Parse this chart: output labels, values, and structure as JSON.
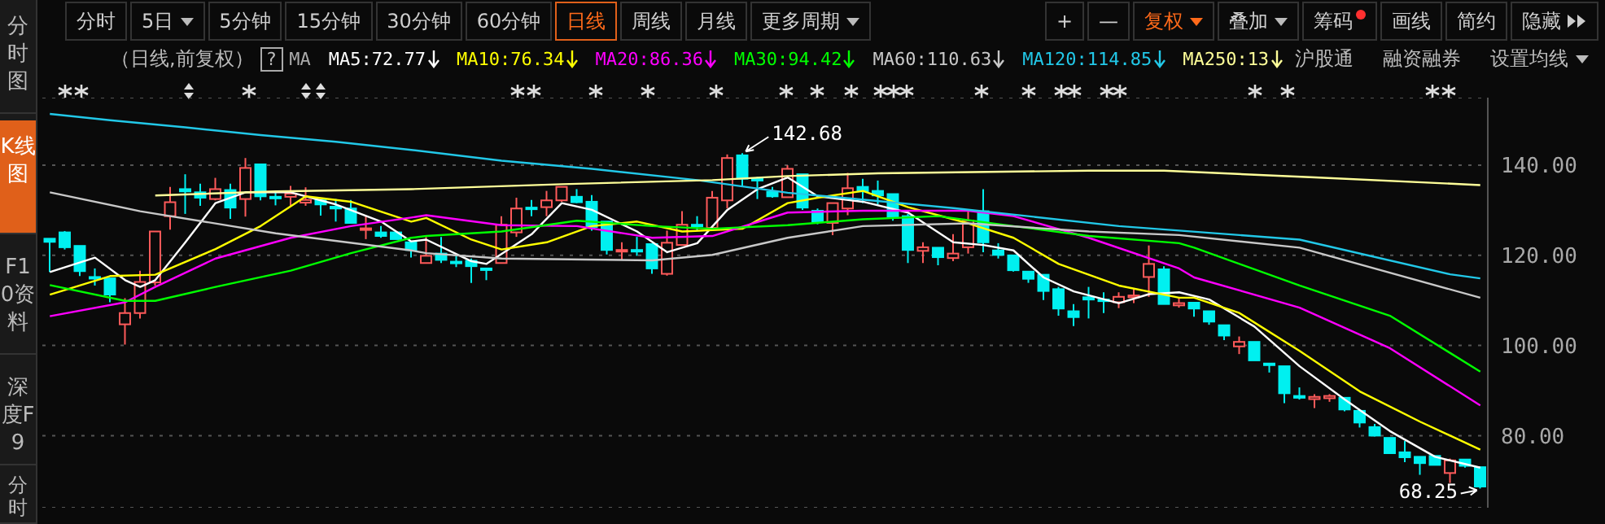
{
  "chart_data": {
    "type": "candlestick",
    "subtitle": "（日线,前复权）",
    "categories": [
      null,
      null,
      null,
      null,
      null,
      null,
      null,
      null,
      null,
      null,
      null,
      null,
      null,
      null,
      null,
      null,
      null,
      null,
      null,
      null,
      null,
      null,
      null,
      null,
      null,
      null,
      null,
      null,
      null,
      null,
      null,
      null,
      null,
      null,
      null,
      null,
      null,
      null,
      null,
      null,
      null,
      null,
      null,
      null,
      null,
      null,
      null,
      null,
      null,
      null,
      null,
      null,
      null,
      null,
      null,
      null,
      null,
      null,
      null,
      null,
      null,
      null,
      null,
      null,
      null,
      null,
      null,
      null,
      null,
      null,
      null,
      null,
      null,
      null,
      null,
      null,
      null,
      null,
      null,
      null,
      null,
      null,
      null,
      null,
      null,
      null,
      null,
      null,
      null,
      null,
      null,
      null,
      null,
      null,
      null,
      null
    ],
    "ohlc": [
      [
        123.7,
        123.7,
        116.3,
        123.0
      ],
      [
        125.1,
        125.4,
        121.3,
        121.8
      ],
      [
        122.1,
        122.1,
        115.4,
        116.5
      ],
      [
        115.2,
        117.1,
        113.3,
        114.9
      ],
      [
        114.9,
        114.9,
        109.6,
        111.3
      ],
      [
        104.7,
        110.5,
        100.2,
        107.2
      ],
      [
        107.2,
        116.6,
        106.0,
        114.1
      ],
      [
        114.0,
        125.3,
        113.3,
        125.3
      ],
      [
        128.7,
        135.2,
        125.7,
        131.8
      ],
      [
        134.7,
        138.0,
        129.2,
        134.2
      ],
      [
        134.0,
        135.9,
        131.0,
        132.8
      ],
      [
        132.5,
        137.2,
        132.2,
        134.7
      ],
      [
        134.5,
        135.9,
        128.1,
        130.6
      ],
      [
        132.5,
        141.6,
        128.6,
        139.4
      ],
      [
        140.2,
        140.2,
        132.2,
        133.1
      ],
      [
        133.0,
        134.3,
        131.1,
        132.8
      ],
      [
        133.0,
        135.4,
        131.0,
        133.7
      ],
      [
        131.7,
        135.1,
        131.0,
        132.3
      ],
      [
        132.3,
        132.5,
        128.8,
        131.3
      ],
      [
        130.8,
        132.5,
        127.5,
        130.4
      ],
      [
        130.4,
        132.3,
        127.2,
        127.2
      ],
      [
        125.8,
        128.7,
        123.6,
        126.0
      ],
      [
        125.1,
        126.5,
        123.9,
        124.3
      ],
      [
        125.1,
        125.3,
        123.6,
        123.6
      ],
      [
        122.9,
        123.1,
        119.5,
        121.2
      ],
      [
        118.3,
        124.1,
        118.3,
        119.9
      ],
      [
        120.4,
        124.1,
        118.3,
        119.0
      ],
      [
        118.6,
        119.9,
        117.4,
        118.3
      ],
      [
        118.8,
        119.3,
        113.9,
        117.6
      ],
      [
        117.1,
        117.1,
        114.5,
        116.9
      ],
      [
        118.3,
        128.7,
        118.3,
        126.8
      ],
      [
        125.1,
        132.8,
        124.1,
        130.4
      ],
      [
        130.6,
        132.3,
        128.7,
        130.4
      ],
      [
        130.7,
        134.3,
        128.7,
        132.2
      ],
      [
        132.2,
        135.2,
        131.9,
        135.2
      ],
      [
        133.0,
        134.7,
        131.6,
        131.8
      ],
      [
        131.9,
        133.4,
        125.5,
        126.3
      ],
      [
        127.5,
        127.5,
        120.2,
        121.2
      ],
      [
        121.0,
        122.9,
        118.9,
        121.2
      ],
      [
        121.2,
        124.1,
        119.9,
        121.0
      ],
      [
        122.5,
        122.5,
        115.9,
        117.1
      ],
      [
        115.9,
        125.5,
        115.5,
        122.8
      ],
      [
        122.3,
        129.8,
        122.3,
        126.8
      ],
      [
        126.8,
        128.7,
        125.5,
        126.5
      ],
      [
        126.1,
        134.3,
        126.1,
        132.8
      ],
      [
        132.2,
        142.4,
        130.4,
        141.6
      ],
      [
        142.2,
        142.68,
        135.5,
        137.0
      ],
      [
        137.0,
        137.4,
        132.5,
        136.6
      ],
      [
        134.1,
        135.2,
        132.8,
        133.1
      ],
      [
        132.9,
        140.0,
        132.8,
        139.2
      ],
      [
        138.0,
        138.0,
        130.1,
        130.6
      ],
      [
        129.9,
        130.4,
        126.9,
        127.5
      ],
      [
        127.2,
        131.6,
        124.5,
        131.6
      ],
      [
        130.4,
        138.3,
        128.9,
        134.9
      ],
      [
        135.2,
        137.0,
        131.6,
        134.2
      ],
      [
        134.3,
        136.6,
        131.3,
        133.3
      ],
      [
        133.6,
        133.6,
        127.7,
        128.3
      ],
      [
        128.7,
        129.2,
        118.3,
        121.2
      ],
      [
        121.0,
        122.9,
        118.3,
        121.8
      ],
      [
        121.7,
        121.7,
        117.8,
        119.6
      ],
      [
        119.4,
        124.7,
        118.7,
        120.4
      ],
      [
        121.8,
        129.8,
        120.4,
        127.7
      ],
      [
        129.8,
        134.7,
        120.7,
        122.9
      ],
      [
        121.1,
        122.7,
        119.3,
        120.1
      ],
      [
        120.0,
        120.0,
        116.4,
        116.7
      ],
      [
        116.4,
        116.4,
        113.9,
        114.8
      ],
      [
        115.7,
        115.7,
        110.1,
        112.1
      ],
      [
        112.5,
        113.0,
        106.6,
        108.2
      ],
      [
        107.6,
        109.2,
        104.3,
        106.3
      ],
      [
        110.7,
        113.0,
        106.0,
        110.2
      ],
      [
        110.2,
        111.8,
        107.2,
        109.9
      ],
      [
        109.6,
        111.8,
        108.3,
        110.8
      ],
      [
        110.7,
        112.5,
        109.4,
        111.1
      ],
      [
        115.2,
        122.2,
        110.8,
        118.1
      ],
      [
        116.9,
        117.6,
        109.2,
        109.2
      ],
      [
        108.9,
        110.5,
        108.4,
        109.4
      ],
      [
        109.5,
        109.5,
        106.4,
        108.2
      ],
      [
        107.6,
        107.6,
        104.6,
        105.3
      ],
      [
        104.5,
        104.5,
        101.2,
        102.2
      ],
      [
        99.8,
        102.0,
        98.1,
        100.8
      ],
      [
        100.8,
        100.8,
        96.7,
        96.7
      ],
      [
        96.0,
        96.0,
        94.0,
        95.7
      ],
      [
        95.4,
        95.4,
        87.2,
        89.4
      ],
      [
        88.8,
        90.7,
        88.0,
        88.4
      ],
      [
        88.1,
        89.2,
        86.1,
        88.6
      ],
      [
        88.3,
        89.2,
        87.5,
        88.8
      ],
      [
        88.4,
        88.4,
        85.4,
        85.8
      ],
      [
        85.5,
        85.5,
        81.8,
        82.9
      ],
      [
        81.9,
        82.6,
        79.8,
        80.0
      ],
      [
        79.5,
        79.5,
        76.1,
        76.1
      ],
      [
        76.3,
        78.8,
        74.1,
        75.2
      ],
      [
        75.3,
        75.3,
        71.3,
        73.9
      ],
      [
        75.5,
        75.5,
        73.5,
        73.5
      ],
      [
        71.7,
        74.9,
        69.5,
        74.5
      ],
      [
        74.7,
        74.7,
        72.9,
        73.3
      ],
      [
        73.0,
        73.0,
        68.25,
        68.7
      ]
    ],
    "series": [
      {
        "type": "line",
        "name": "MA5:72.77",
        "color": "#ffffff",
        "values": [
          116.3,
          null,
          null,
          119.5,
          null,
          114.5,
          113.0,
          114.5,
          null,
          122.9,
          null,
          131.6,
          null,
          134.0,
          null,
          null,
          134.0,
          null,
          null,
          131.3,
          null,
          null,
          127.5,
          null,
          123.1,
          123.5,
          null,
          null,
          118.7,
          118.1,
          null,
          null,
          124.7,
          null,
          131.6,
          null,
          130.1,
          null,
          null,
          125.3,
          null,
          120.7,
          null,
          122.7,
          null,
          130.1,
          null,
          134.7,
          null,
          137.3,
          null,
          133.1,
          null,
          null,
          131.9,
          null,
          null,
          129.5,
          null,
          null,
          122.9,
          null,
          122.3,
          null,
          121.1,
          null,
          115.1,
          null,
          112.0,
          null,
          null,
          109.4,
          null,
          111.4,
          null,
          111.8,
          null,
          110.2,
          null,
          null,
          104.2,
          null,
          null,
          95.4,
          null,
          null,
          88.0,
          null,
          null,
          81.0,
          null,
          null,
          75.3,
          null,
          null,
          72.9
        ]
      },
      {
        "type": "line",
        "name": "MA10:76.34",
        "color": "#ffff00",
        "values": [
          111.3,
          null,
          null,
          null,
          115.4,
          null,
          null,
          115.7,
          null,
          null,
          null,
          121.4,
          null,
          null,
          126.5,
          null,
          null,
          133.1,
          null,
          null,
          131.9,
          null,
          null,
          null,
          127.5,
          128.3,
          null,
          null,
          123.5,
          null,
          121.3,
          null,
          null,
          122.9,
          null,
          null,
          126.5,
          null,
          null,
          127.5,
          null,
          null,
          125.3,
          null,
          null,
          null,
          125.9,
          null,
          null,
          131.6,
          null,
          132.8,
          null,
          null,
          134.3,
          null,
          null,
          130.7,
          null,
          null,
          null,
          127.1,
          null,
          null,
          123.9,
          null,
          null,
          118.1,
          null,
          null,
          null,
          113.3,
          null,
          null,
          null,
          110.6,
          110.6,
          null,
          null,
          107.2,
          null,
          null,
          null,
          98.8,
          null,
          null,
          null,
          89.8,
          null,
          null,
          null,
          83.1,
          null,
          null,
          null,
          76.9
        ]
      },
      {
        "type": "line",
        "name": "MA20:86.36",
        "color": "#ff00ff",
        "values": [
          106.5,
          null,
          null,
          null,
          null,
          109.6,
          null,
          113.0,
          null,
          null,
          null,
          119.3,
          null,
          null,
          null,
          null,
          123.9,
          null,
          null,
          null,
          126.5,
          null,
          null,
          null,
          128.4,
          128.9,
          null,
          null,
          null,
          null,
          126.7,
          null,
          null,
          null,
          null,
          126.5,
          null,
          null,
          null,
          null,
          123.9,
          null,
          null,
          null,
          124.3,
          null,
          null,
          null,
          null,
          129.5,
          null,
          null,
          null,
          null,
          129.9,
          null,
          null,
          null,
          null,
          null,
          null,
          129.9,
          null,
          null,
          128.7,
          null,
          null,
          null,
          null,
          123.9,
          null,
          null,
          null,
          null,
          null,
          117.1,
          115.1,
          null,
          null,
          null,
          null,
          null,
          null,
          108.4,
          null,
          null,
          null,
          null,
          null,
          99.4,
          null,
          null,
          null,
          null,
          null,
          86.7
        ]
      },
      {
        "type": "line",
        "name": "MA30:94.42",
        "color": "#00ff00",
        "values": [
          113.4,
          null,
          null,
          null,
          null,
          109.9,
          null,
          109.9,
          null,
          null,
          null,
          113.0,
          null,
          null,
          null,
          null,
          116.6,
          null,
          null,
          null,
          120.5,
          null,
          null,
          null,
          123.9,
          124.3,
          null,
          null,
          null,
          null,
          125.3,
          null,
          null,
          null,
          null,
          127.7,
          null,
          null,
          null,
          null,
          126.5,
          null,
          null,
          null,
          125.9,
          null,
          null,
          null,
          null,
          126.7,
          null,
          null,
          null,
          null,
          128.0,
          null,
          null,
          null,
          null,
          128.7,
          null,
          null,
          null,
          null,
          126.5,
          null,
          null,
          null,
          null,
          124.3,
          null,
          null,
          null,
          null,
          null,
          122.7,
          121.7,
          null,
          null,
          null,
          null,
          null,
          null,
          113.3,
          null,
          null,
          null,
          null,
          null,
          106.6,
          null,
          null,
          null,
          null,
          null,
          94.2
        ]
      },
      {
        "type": "line",
        "name": "MA60:110.63",
        "color": "#c8c8c8",
        "values": [
          134.0,
          null,
          null,
          null,
          null,
          null,
          129.8,
          null,
          null,
          null,
          null,
          null,
          null,
          null,
          null,
          124.9,
          null,
          null,
          null,
          null,
          null,
          null,
          null,
          null,
          121.1,
          120.5,
          null,
          null,
          null,
          null,
          119.3,
          null,
          null,
          null,
          null,
          null,
          null,
          null,
          null,
          null,
          118.9,
          null,
          null,
          null,
          120.1,
          null,
          null,
          null,
          null,
          123.9,
          null,
          null,
          null,
          null,
          126.5,
          null,
          null,
          null,
          null,
          null,
          null,
          127.1,
          null,
          null,
          null,
          null,
          null,
          null,
          null,
          125.3,
          null,
          null,
          null,
          null,
          null,
          124.5,
          null,
          null,
          null,
          null,
          null,
          null,
          null,
          121.7,
          null,
          null,
          null,
          null,
          null,
          null,
          null,
          null,
          null,
          null,
          null,
          110.6
        ]
      },
      {
        "type": "line",
        "name": "MA120:114.85",
        "color": "#22c8e8",
        "values": [
          151.4,
          null,
          null,
          null,
          150.0,
          null,
          null,
          null,
          null,
          148.4,
          null,
          null,
          null,
          null,
          146.7,
          null,
          null,
          null,
          null,
          145.2,
          null,
          null,
          null,
          null,
          143.4,
          null,
          null,
          null,
          null,
          null,
          141.0,
          null,
          null,
          null,
          null,
          null,
          139.2,
          null,
          null,
          null,
          null,
          null,
          null,
          136.7,
          null,
          null,
          null,
          null,
          null,
          133.9,
          null,
          null,
          null,
          null,
          null,
          null,
          null,
          null,
          null,
          null,
          130.5,
          null,
          null,
          null,
          null,
          null,
          null,
          null,
          null,
          null,
          null,
          126.5,
          null,
          null,
          null,
          125.5,
          null,
          null,
          null,
          null,
          null,
          null,
          null,
          123.5,
          null,
          null,
          null,
          null,
          null,
          null,
          null,
          null,
          null,
          115.8,
          null,
          114.9
        ]
      },
      {
        "type": "line",
        "name": "MA250:13",
        "color": "#ffff99",
        "values": [
          null,
          null,
          null,
          null,
          null,
          null,
          null,
          133.3,
          null,
          null,
          null,
          null,
          null,
          null,
          null,
          134.2,
          null,
          null,
          null,
          null,
          null,
          null,
          null,
          null,
          134.7,
          null,
          null,
          null,
          null,
          null,
          null,
          null,
          null,
          null,
          135.8,
          null,
          null,
          null,
          null,
          null,
          null,
          null,
          null,
          null,
          136.7,
          null,
          null,
          null,
          null,
          137.6,
          null,
          null,
          null,
          null,
          null,
          138.2,
          null,
          null,
          null,
          null,
          null,
          null,
          null,
          null,
          null,
          null,
          null,
          null,
          null,
          138.8,
          null,
          null,
          null,
          null,
          138.8,
          null,
          null,
          null,
          null,
          null,
          null,
          null,
          null,
          null,
          137.3,
          null,
          null,
          null,
          null,
          null,
          null,
          null,
          null,
          null,
          null,
          135.6
        ]
      }
    ],
    "ylim": [
      64,
      155
    ],
    "yticks": [
      {
        "value": 80,
        "label": "80.00"
      },
      {
        "value": 100,
        "label": "100.00"
      },
      {
        "value": 120,
        "label": "120.00"
      },
      {
        "value": 140,
        "label": "140.00"
      }
    ],
    "grid": "y",
    "legend": "top left",
    "tick_labels": "y",
    "annotations": [
      "分时",
      "5日",
      "5分钟",
      "15分钟",
      "30分钟",
      "60分钟",
      "日线",
      "周线",
      "月线",
      "更多周期",
      "+",
      "—",
      "复权",
      "叠加",
      "筹码",
      "画线",
      "简约",
      "隐藏",
      "分时图",
      "K线图",
      "F10资料",
      "深度F9",
      "分时",
      "?",
      "MA",
      "沪股通",
      "融资融券",
      "设置均线",
      "142.68",
      "68.25"
    ]
  }
}
